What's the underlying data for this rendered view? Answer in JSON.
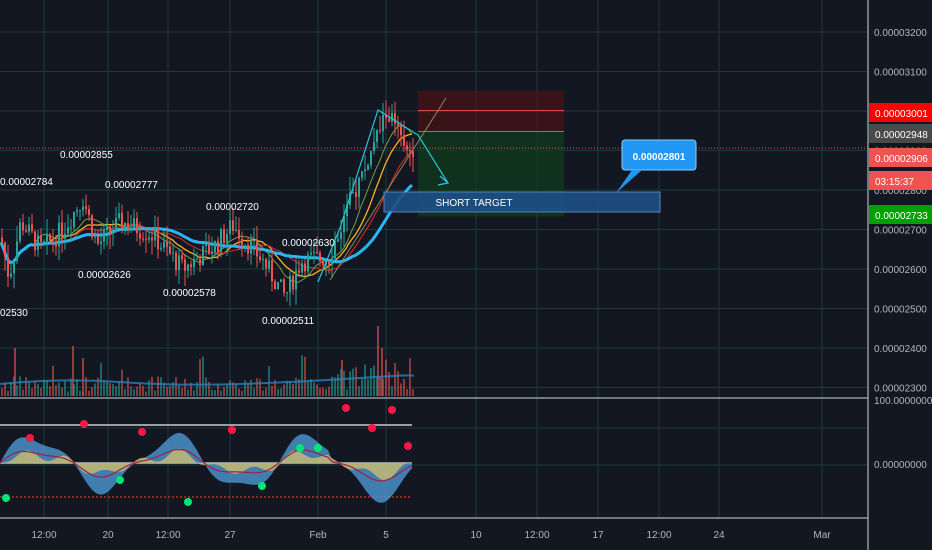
{
  "chart_data": {
    "type": "candlestick",
    "title": "",
    "y_ticks": [
      "0.00003200",
      "0.00003100",
      "0.00003000",
      "0.00002900",
      "0.00002800",
      "0.00002700",
      "0.00002600",
      "0.00002500",
      "0.00002400",
      "0.00002300"
    ],
    "ylim": [
      2.28e-05,
      3.25e-05
    ],
    "x_ticks": [
      "12:00",
      "20",
      "12:00",
      "27",
      "Feb",
      "5",
      "10",
      "12:00",
      "17",
      "12:00",
      "24",
      "Mar"
    ],
    "price_badges": [
      {
        "text": "0.00003001",
        "color": "#ff0000"
      },
      {
        "text": "0.00002948",
        "color": "#4a4a4a"
      },
      {
        "text": "0.00002906",
        "color": "#ef5350"
      },
      {
        "text": "03:15:37",
        "color": "#ef5350"
      },
      {
        "text": "0.00002733",
        "color": "#00a000"
      }
    ],
    "extrema_labels": [
      "0.00002784",
      "0.00002855",
      "0.00002777",
      "0.00002720",
      "0.00002630",
      "0.00002626",
      "0.00002578",
      "0.00002511",
      "02530"
    ],
    "callout": "0.00002801",
    "target_label": "SHORT TARGET",
    "indicator_tick": "0.00000000",
    "indicator_top_tick": "100.00000000",
    "current_price": 2.906e-05,
    "colors": {
      "up": "#26a69a",
      "down": "#ef5350",
      "ema_fast": "#f7b51e",
      "ema_slow": "#29b6f6",
      "ma_red": "#c62828",
      "callout": "#2196f3"
    }
  }
}
